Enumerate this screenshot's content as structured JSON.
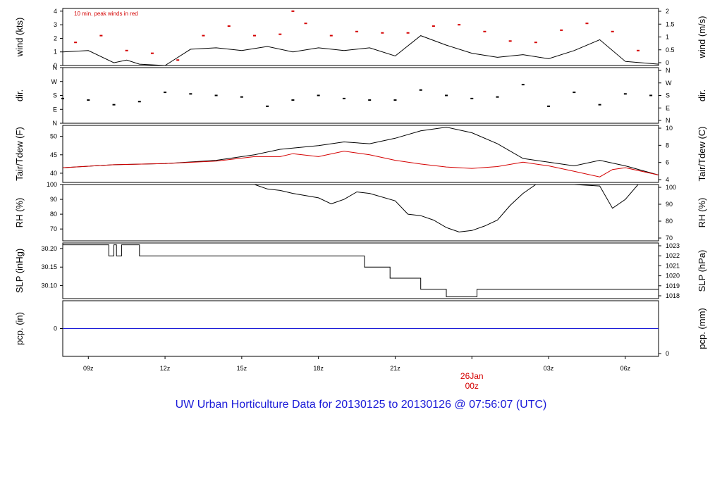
{
  "title": "UW Urban Horticulture Data for 20130125  to  20130126 @ 07:56:07  (UTC)",
  "annotation": "10 min. peak winds in red",
  "colors": {
    "axis": "#000000",
    "red": "#d40000",
    "blue": "#1a1ad8"
  },
  "chart_data": [
    {
      "type": "line",
      "name": "wind",
      "ylabel_left": "wind (kts)",
      "ylabel_right": "wind (m/s)",
      "ylim": [
        0,
        4.2
      ],
      "left_ticks": [
        "0",
        "1",
        "2",
        "3",
        "4"
      ],
      "right_ticks": [
        "0",
        "0.5",
        "1",
        "1.5",
        "2"
      ],
      "series": [
        {
          "color": "#000000",
          "x": [
            8.0,
            9.0,
            10.0,
            10.5,
            11.0,
            12.0,
            13.0,
            14.0,
            15.0,
            16.0,
            17.0,
            18.0,
            19.0,
            20.0,
            21.0,
            22.0,
            23.0,
            24.0,
            25.0,
            26.0,
            27.0,
            28.0,
            29.0,
            30.0,
            31.3
          ],
          "y": [
            1.0,
            1.1,
            0.2,
            0.4,
            0.1,
            0.0,
            1.2,
            1.3,
            1.1,
            1.4,
            1.0,
            1.3,
            1.1,
            1.3,
            0.7,
            2.2,
            1.5,
            0.9,
            0.6,
            0.8,
            0.5,
            1.1,
            1.9,
            0.3,
            0.1
          ]
        },
        {
          "color": "#d40000",
          "style": "points",
          "x": [
            8.5,
            9.5,
            10.5,
            11.5,
            12.5,
            13.5,
            14.5,
            15.5,
            16.5,
            17.0,
            17.5,
            18.5,
            19.5,
            20.5,
            21.5,
            22.5,
            23.5,
            24.5,
            25.5,
            26.5,
            27.5,
            28.5,
            29.5,
            30.5
          ],
          "y": [
            1.7,
            2.2,
            1.1,
            0.9,
            0.4,
            2.2,
            2.9,
            2.2,
            2.3,
            4.0,
            3.1,
            2.2,
            2.5,
            2.4,
            2.4,
            2.9,
            3.0,
            2.5,
            1.8,
            1.7,
            2.6,
            3.1,
            2.5,
            1.1
          ]
        }
      ]
    },
    {
      "type": "scatter",
      "name": "dir.",
      "ylabel_left": "dir.",
      "ylabel_right": "dir.",
      "ylim": [
        0,
        360
      ],
      "ticks": [
        "N",
        "E",
        "S",
        "W",
        "N"
      ],
      "series": [
        {
          "color": "#000000",
          "x": [
            8.0,
            9.0,
            10.0,
            11.0,
            12.0,
            13.0,
            14.0,
            15.0,
            16.0,
            17.0,
            18.0,
            19.0,
            20.0,
            21.0,
            22.0,
            23.0,
            24.0,
            25.0,
            26.0,
            27.0,
            28.0,
            29.0,
            30.0,
            31.0
          ],
          "y": [
            160,
            150,
            120,
            140,
            200,
            190,
            180,
            170,
            110,
            150,
            180,
            160,
            150,
            150,
            215,
            180,
            160,
            170,
            250,
            110,
            200,
            120,
            190,
            180
          ]
        }
      ]
    },
    {
      "type": "line",
      "name": "temperature",
      "ylabel_left": "Tair/Tdew (F)",
      "ylabel_right": "Tair/Tdew (C)",
      "ylim": [
        37.5,
        53
      ],
      "left_ticks": [
        "40",
        "45",
        "50"
      ],
      "right_ticks": [
        "4",
        "6",
        "8",
        "10"
      ],
      "series": [
        {
          "color": "#000000",
          "x": [
            8.0,
            10.0,
            12.0,
            14.0,
            15.5,
            16.5,
            18.0,
            19.0,
            20.0,
            21.0,
            22.0,
            23.0,
            24.0,
            25.0,
            26.0,
            27.0,
            28.0,
            29.0,
            30.0,
            31.3
          ],
          "y": [
            41.5,
            42.3,
            42.6,
            43.5,
            45.0,
            46.5,
            47.5,
            48.5,
            48.0,
            49.5,
            51.5,
            52.5,
            51.0,
            48.0,
            44.0,
            43.0,
            42.0,
            43.5,
            42.0,
            39.5
          ]
        },
        {
          "color": "#d40000",
          "x": [
            8.0,
            10.0,
            12.0,
            14.0,
            15.5,
            16.5,
            17.0,
            18.0,
            19.0,
            20.0,
            21.0,
            22.0,
            23.0,
            24.0,
            25.0,
            26.0,
            27.0,
            28.0,
            29.0,
            29.5,
            30.0,
            31.3
          ],
          "y": [
            41.5,
            42.3,
            42.6,
            43.3,
            44.5,
            44.5,
            45.3,
            44.5,
            46.0,
            45.0,
            43.5,
            42.5,
            41.7,
            41.3,
            41.8,
            43.0,
            42.0,
            40.5,
            39.0,
            41.0,
            41.5,
            39.5
          ]
        }
      ]
    },
    {
      "type": "line",
      "name": "RH",
      "ylabel_left": "RH (%)",
      "ylabel_right": "RH (%)",
      "ylim": [
        62,
        100
      ],
      "left_ticks": [
        "70",
        "80",
        "90",
        "100"
      ],
      "right_ticks": [
        "70",
        "80",
        "90",
        "100"
      ],
      "series": [
        {
          "color": "#000000",
          "x": [
            15.5,
            16.0,
            16.5,
            17.0,
            18.0,
            18.5,
            19.0,
            19.5,
            20.0,
            21.0,
            21.5,
            22.0,
            22.5,
            23.0,
            23.5,
            24.0,
            24.5,
            25.0,
            25.5,
            26.0,
            26.5,
            27.0,
            28.0,
            29.0,
            29.5,
            30.0,
            30.5,
            31.3
          ],
          "y": [
            100,
            97,
            96,
            94,
            91,
            87,
            90,
            95,
            94,
            89,
            80,
            79,
            76,
            71,
            68,
            69,
            72,
            76,
            86,
            94,
            100,
            100,
            100,
            99,
            84,
            90,
            100,
            100
          ]
        }
      ]
    },
    {
      "type": "line",
      "name": "SLP",
      "ylabel_left": "SLP (inHg)",
      "ylabel_right": "SLP (hPa)",
      "ylim": [
        30.065,
        30.215
      ],
      "left_ticks": [
        "30.10",
        "30.15",
        "30.20"
      ],
      "right_ticks": [
        "1018",
        "1019",
        "1020",
        "1021",
        "1022",
        "1023"
      ],
      "series": [
        {
          "color": "#000000",
          "x": [
            8.0,
            9.8,
            9.8,
            10.0,
            10.0,
            10.1,
            10.1,
            10.3,
            10.3,
            10.5,
            10.5,
            11.0,
            11.0,
            19.8,
            19.8,
            20.8,
            20.8,
            22.0,
            22.0,
            23.0,
            23.0,
            24.2,
            24.2,
            31.3
          ],
          "y": [
            30.21,
            30.21,
            30.18,
            30.18,
            30.21,
            30.21,
            30.18,
            30.18,
            30.21,
            30.21,
            30.21,
            30.21,
            30.18,
            30.18,
            30.15,
            30.15,
            30.12,
            30.12,
            30.09,
            30.09,
            30.07,
            30.07,
            30.09,
            30.09
          ]
        }
      ]
    },
    {
      "type": "line",
      "name": "precipitation",
      "ylabel_left": "pcp. (in)",
      "ylabel_right": "pcp. (mm)",
      "ylim": [
        -1,
        1
      ],
      "left_ticks": [
        "0"
      ],
      "right_ticks": [
        "0"
      ],
      "series": [
        {
          "color": "#1a1ad8",
          "x": [
            8.0,
            31.3
          ],
          "y": [
            0,
            0
          ]
        }
      ]
    }
  ],
  "x_axis": {
    "xlim": [
      8.0,
      31.3
    ],
    "ticks": [
      {
        "value": 9,
        "label": "09z"
      },
      {
        "value": 12,
        "label": "12z"
      },
      {
        "value": 15,
        "label": "15z"
      },
      {
        "value": 18,
        "label": "18z"
      },
      {
        "value": 21,
        "label": "21z"
      },
      {
        "value": 24,
        "label": "00z"
      },
      {
        "value": 27,
        "label": "03z"
      },
      {
        "value": 30,
        "label": "06z"
      }
    ],
    "day_label": "26Jan",
    "day_time_label": "00z"
  }
}
